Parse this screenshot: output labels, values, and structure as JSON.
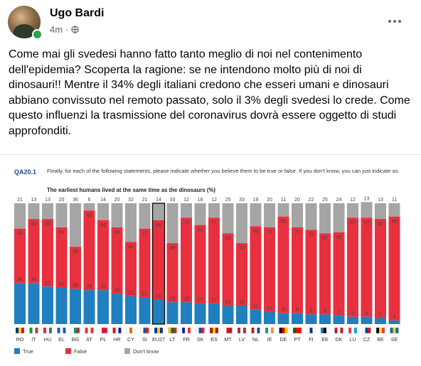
{
  "post": {
    "author": "Ugo Bardi",
    "time": "4m",
    "meta_separator": "·",
    "icons": {
      "privacy": "globe-icon",
      "more": "more-options-icon"
    },
    "text": "Come mai gli svedesi hanno fatto tanto meglio di noi nel contenimento dell'epidemia? Scoperta la ragione: se ne intendono molto più di noi di dinosauri!! Mentre il 34% degli italiani credono che esseri umani e dinosauri abbiano convissuto nel remoto passato, solo il 3% degli svedesi lo crede. Come questo influenzi la trasmissione del coronavirus dovrà essere oggetto di studi approfonditi."
  },
  "chart_data": {
    "type": "bar",
    "stacked": true,
    "code": "QA20.1",
    "question": "Finally, for each of the following statements, please indicate whether you believe them to be true or false. If you don't know, you can just indicate so.",
    "title": "The earliest humans lived at the same time as the dinosaurs (%)",
    "categories": [
      "RO",
      "IT",
      "HU",
      "EL",
      "BG",
      "AT",
      "PL",
      "HR",
      "CY",
      "SI",
      "EU27",
      "LT",
      "FR",
      "SK",
      "ES",
      "MT",
      "LV",
      "NL",
      "IE",
      "DE",
      "PT",
      "FI",
      "EE",
      "DK",
      "LU",
      "CZ",
      "BE",
      "SE"
    ],
    "highlight": "EU27",
    "series": [
      {
        "name": "True",
        "color": "#1f7fbf",
        "values": [
          34,
          34,
          31,
          30,
          29,
          28,
          28,
          25,
          23,
          22,
          20,
          18,
          18,
          17,
          17,
          15,
          15,
          12,
          10,
          9,
          9,
          8,
          8,
          7,
          6,
          6,
          5,
          3
        ]
      },
      {
        "name": "False",
        "color": "#e8303e",
        "values": [
          45,
          53,
          56,
          50,
          35,
          66,
          58,
          55,
          45,
          57,
          66,
          49,
          70,
          65,
          71,
          60,
          52,
          69,
          70,
          80,
          71,
          70,
          67,
          69,
          82,
          82,
          82,
          86
        ]
      },
      {
        "name": "Don't know",
        "color": "#a6a5a5",
        "values": [
          21,
          13,
          13,
          20,
          36,
          6,
          14,
          20,
          32,
          21,
          14,
          33,
          12,
          18,
          12,
          25,
          33,
          19,
          20,
          11,
          20,
          22,
          25,
          24,
          12,
          13,
          13,
          11
        ]
      }
    ],
    "legend": [
      "True",
      "False",
      "Don't know"
    ],
    "legend_position": "bottom",
    "ylim": [
      0,
      100
    ]
  }
}
